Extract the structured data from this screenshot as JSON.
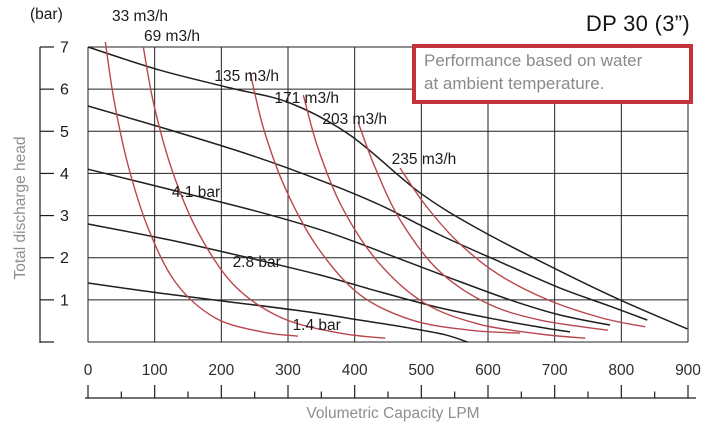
{
  "title": "DP 30 (3”)",
  "note": {
    "line1": "Performance based on water",
    "line2": "at ambient temperature."
  },
  "colors": {
    "black_curve": "#1f1f1f",
    "red_curve": "#b9474e",
    "note_border": "#c5333a",
    "muted_text": "#8e8e8e"
  },
  "chart_data": {
    "type": "line",
    "title": "DP 30 (3”)",
    "xlabel": "Volumetric Capacity LPM",
    "ylabel": "Total discharge head",
    "y_unit": "(bar)",
    "xlim": [
      0,
      900
    ],
    "ylim": [
      0,
      7
    ],
    "x_ticks": [
      0,
      100,
      200,
      300,
      400,
      500,
      600,
      700,
      800,
      900
    ],
    "x_minor_tick_step": 50,
    "y_ticks": [
      7,
      6,
      5,
      4,
      3,
      2,
      1
    ],
    "grid": true,
    "legend": "labels on curves",
    "group_colors": {
      "total-discharge-head": "#1f1f1f",
      "air-consumption": "#b9474e"
    },
    "series": [
      {
        "id": "discharge-curve-1",
        "group": "total-discharge-head",
        "label": "",
        "label_at": null,
        "points": [
          [
            0,
            7.0
          ],
          [
            108,
            6.45
          ],
          [
            213,
            6.03
          ],
          [
            303,
            5.67
          ],
          [
            393,
            4.91
          ],
          [
            498,
            3.54
          ],
          [
            588,
            2.66
          ],
          [
            698,
            1.76
          ],
          [
            798,
            1.0
          ],
          [
            899,
            0.31
          ]
        ]
      },
      {
        "id": "discharge-curve-2",
        "group": "total-discharge-head",
        "label": "",
        "label_at": null,
        "points": [
          [
            0,
            5.6
          ],
          [
            123,
            5.03
          ],
          [
            243,
            4.44
          ],
          [
            348,
            3.84
          ],
          [
            438,
            3.25
          ],
          [
            528,
            2.54
          ],
          [
            618,
            1.9
          ],
          [
            708,
            1.28
          ],
          [
            783,
            0.85
          ],
          [
            839,
            0.52
          ]
        ]
      },
      {
        "id": "discharge-curve-4-1-bar",
        "group": "total-discharge-head",
        "label": "4.1 bar",
        "label_at": [
          162,
          3.56
        ],
        "points": [
          [
            0,
            4.1
          ],
          [
            138,
            3.56
          ],
          [
            258,
            3.08
          ],
          [
            363,
            2.59
          ],
          [
            453,
            2.06
          ],
          [
            543,
            1.52
          ],
          [
            633,
            1.0
          ],
          [
            708,
            0.64
          ],
          [
            783,
            0.4
          ]
        ]
      },
      {
        "id": "discharge-curve-2-8-bar",
        "group": "total-discharge-head",
        "label": "2.8 bar",
        "label_at": [
          253,
          1.9
        ],
        "points": [
          [
            0,
            2.8
          ],
          [
            123,
            2.42
          ],
          [
            243,
            1.99
          ],
          [
            348,
            1.59
          ],
          [
            438,
            1.19
          ],
          [
            528,
            0.81
          ],
          [
            618,
            0.52
          ],
          [
            686,
            0.33
          ],
          [
            723,
            0.24
          ]
        ]
      },
      {
        "id": "discharge-curve-1-4-bar",
        "group": "total-discharge-head",
        "label": "1.4 bar",
        "label_at": [
          343,
          0.4
        ],
        "points": [
          [
            0,
            1.4
          ],
          [
            108,
            1.16
          ],
          [
            213,
            0.95
          ],
          [
            318,
            0.74
          ],
          [
            408,
            0.52
          ],
          [
            483,
            0.33
          ],
          [
            536,
            0.17
          ],
          [
            569,
            0.0
          ]
        ]
      },
      {
        "id": "air-curve-33",
        "group": "air-consumption",
        "label": "33 m3/h",
        "label_at": [
          78,
          7.74
        ],
        "points": [
          [
            26,
            7.12
          ],
          [
            39,
            5.74
          ],
          [
            60,
            4.2
          ],
          [
            90,
            2.71
          ],
          [
            132,
            1.4
          ],
          [
            191,
            0.57
          ],
          [
            261,
            0.24
          ],
          [
            315,
            0.14
          ]
        ]
      },
      {
        "id": "air-curve-69",
        "group": "air-consumption",
        "label": "69 m3/h",
        "label_at": [
          126,
          7.26
        ],
        "points": [
          [
            83,
            7.0
          ],
          [
            99,
            5.62
          ],
          [
            126,
            4.08
          ],
          [
            165,
            2.61
          ],
          [
            219,
            1.35
          ],
          [
            291,
            0.57
          ],
          [
            378,
            0.21
          ],
          [
            446,
            0.09
          ]
        ]
      },
      {
        "id": "air-curve-135",
        "group": "air-consumption",
        "label": "135 m3/h",
        "label_at": [
          238,
          6.31
        ],
        "points": [
          [
            243,
            6.41
          ],
          [
            264,
            5.03
          ],
          [
            297,
            3.61
          ],
          [
            345,
            2.23
          ],
          [
            408,
            1.12
          ],
          [
            486,
            0.52
          ],
          [
            573,
            0.28
          ],
          [
            648,
            0.21
          ]
        ]
      },
      {
        "id": "air-curve-171",
        "group": "air-consumption",
        "label": "171 m3/h",
        "label_at": [
          328,
          5.79
        ],
        "points": [
          [
            323,
            5.86
          ],
          [
            345,
            4.6
          ],
          [
            381,
            3.2
          ],
          [
            435,
            1.9
          ],
          [
            504,
            0.93
          ],
          [
            585,
            0.43
          ],
          [
            678,
            0.19
          ],
          [
            746,
            0.09
          ]
        ]
      },
      {
        "id": "air-curve-203",
        "group": "air-consumption",
        "label": "203 m3/h",
        "label_at": [
          400,
          5.29
        ],
        "points": [
          [
            405,
            5.22
          ],
          [
            431,
            4.13
          ],
          [
            468,
            2.9
          ],
          [
            525,
            1.71
          ],
          [
            597,
            0.93
          ],
          [
            678,
            0.52
          ],
          [
            780,
            0.28
          ]
        ]
      },
      {
        "id": "air-curve-235",
        "group": "air-consumption",
        "label": "235 m3/h",
        "label_at": [
          504,
          4.34
        ],
        "points": [
          [
            468,
            4.13
          ],
          [
            506,
            3.25
          ],
          [
            555,
            2.37
          ],
          [
            615,
            1.61
          ],
          [
            690,
            1.0
          ],
          [
            771,
            0.57
          ],
          [
            836,
            0.36
          ]
        ]
      }
    ]
  }
}
